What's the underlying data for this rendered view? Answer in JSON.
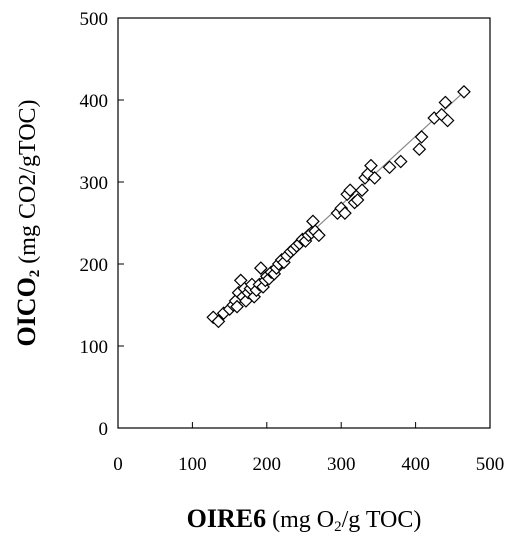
{
  "chart_data": {
    "type": "scatter",
    "title": "",
    "xlabel": {
      "bold": "OIRE6",
      "rest_before_sub": " (mg O",
      "sub": "2",
      "rest_after_sub": "/g TOC)"
    },
    "ylabel": {
      "bold": "OICO",
      "bold_sub": "2",
      "rest": " (mg CO2/gTOC)"
    },
    "xlim": [
      0,
      500
    ],
    "ylim": [
      0,
      500
    ],
    "xticks": [
      "0",
      "100",
      "200",
      "300",
      "400",
      "500"
    ],
    "yticks": [
      "0",
      "100",
      "200",
      "300",
      "400",
      "500"
    ],
    "grid": false,
    "legend": "none",
    "marker": "diamond-open",
    "trendline": {
      "x": [
        130,
        465
      ],
      "y": [
        130,
        410
      ]
    },
    "points": [
      [
        128,
        135
      ],
      [
        135,
        130
      ],
      [
        142,
        140
      ],
      [
        150,
        145
      ],
      [
        155,
        150
      ],
      [
        158,
        155
      ],
      [
        160,
        148
      ],
      [
        162,
        165
      ],
      [
        165,
        180
      ],
      [
        168,
        160
      ],
      [
        170,
        170
      ],
      [
        172,
        155
      ],
      [
        175,
        165
      ],
      [
        178,
        170
      ],
      [
        180,
        175
      ],
      [
        183,
        160
      ],
      [
        186,
        168
      ],
      [
        190,
        175
      ],
      [
        192,
        195
      ],
      [
        195,
        172
      ],
      [
        198,
        180
      ],
      [
        200,
        185
      ],
      [
        203,
        182
      ],
      [
        206,
        190
      ],
      [
        210,
        188
      ],
      [
        213,
        195
      ],
      [
        216,
        200
      ],
      [
        220,
        205
      ],
      [
        223,
        202
      ],
      [
        227,
        210
      ],
      [
        232,
        215
      ],
      [
        236,
        218
      ],
      [
        240,
        222
      ],
      [
        244,
        225
      ],
      [
        248,
        230
      ],
      [
        252,
        228
      ],
      [
        256,
        235
      ],
      [
        260,
        238
      ],
      [
        262,
        252
      ],
      [
        265,
        240
      ],
      [
        270,
        235
      ],
      [
        295,
        262
      ],
      [
        300,
        268
      ],
      [
        305,
        262
      ],
      [
        308,
        285
      ],
      [
        312,
        290
      ],
      [
        318,
        275
      ],
      [
        322,
        278
      ],
      [
        328,
        290
      ],
      [
        332,
        305
      ],
      [
        336,
        310
      ],
      [
        340,
        320
      ],
      [
        345,
        305
      ],
      [
        365,
        318
      ],
      [
        380,
        325
      ],
      [
        405,
        340
      ],
      [
        408,
        355
      ],
      [
        425,
        378
      ],
      [
        435,
        382
      ],
      [
        440,
        397
      ],
      [
        443,
        375
      ],
      [
        465,
        410
      ]
    ]
  }
}
